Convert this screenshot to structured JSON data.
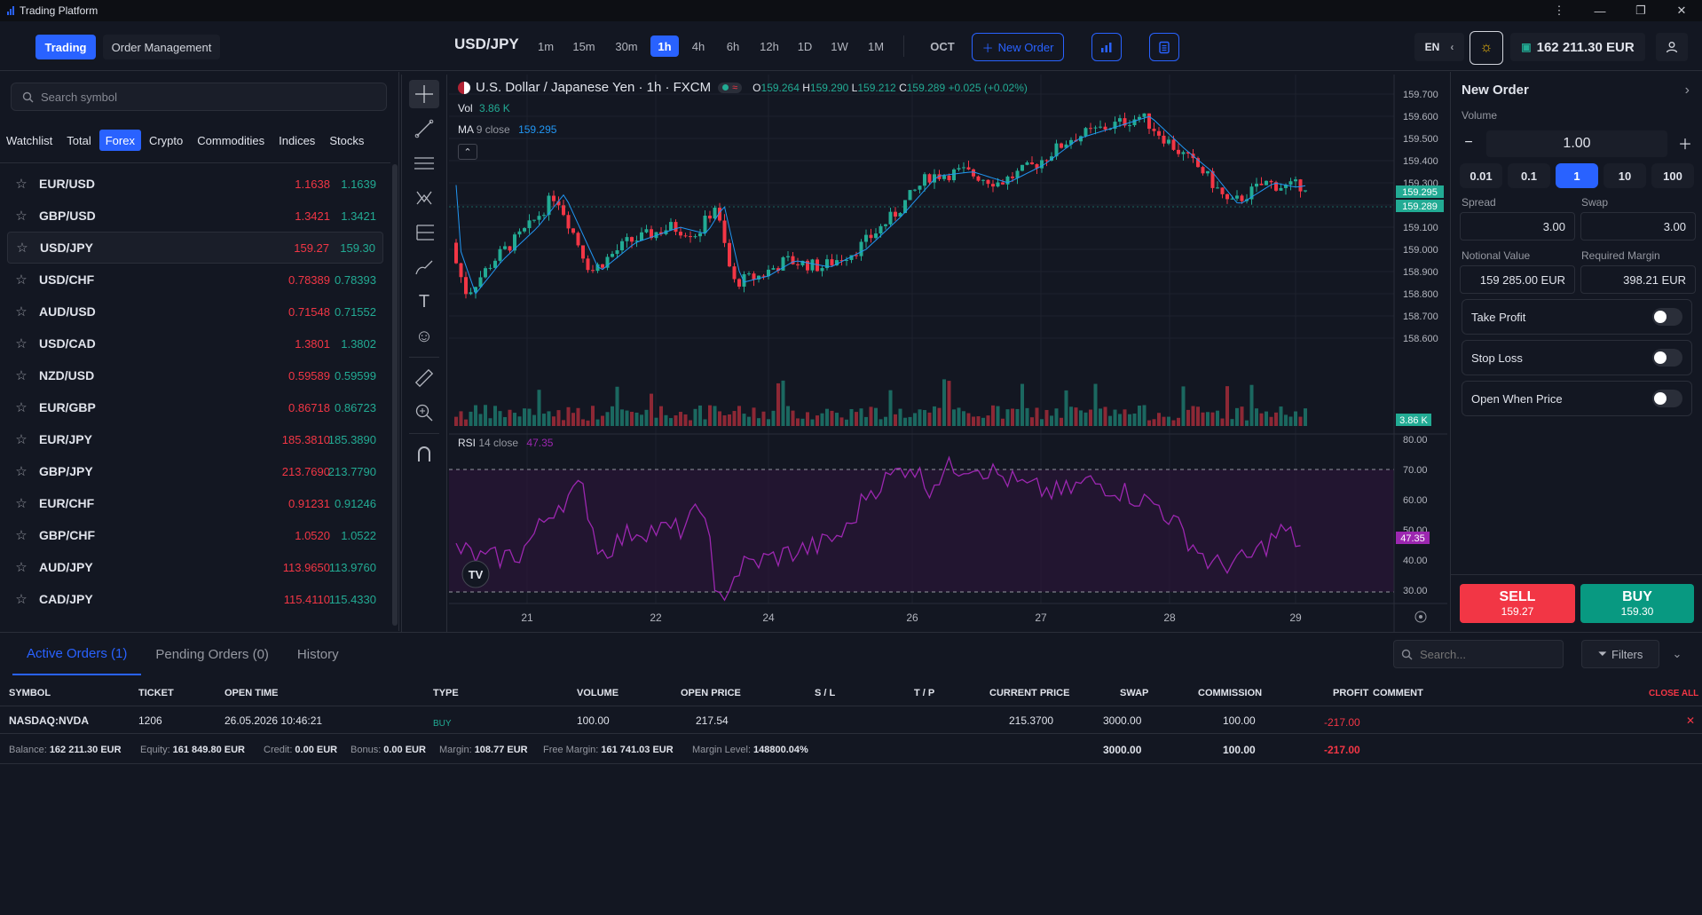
{
  "window": {
    "title": "Trading Platform"
  },
  "nav": {
    "trading": "Trading",
    "order_management": "Order Management"
  },
  "header": {
    "symbol": "USD/JPY",
    "timeframes": [
      "1m",
      "15m",
      "30m",
      "1h",
      "4h",
      "6h",
      "12h",
      "1D",
      "1W",
      "1M"
    ],
    "active_timeframe": "1h",
    "oct": "OCT",
    "new_order": "New Order",
    "lang": "EN",
    "balance": "162 211.30 EUR"
  },
  "search": {
    "placeholder": "Search symbol"
  },
  "categories": [
    "Watchlist",
    "Total",
    "Forex",
    "Crypto",
    "Commodities",
    "Indices",
    "Stocks"
  ],
  "active_category": "Forex",
  "symbols": [
    {
      "name": "EUR/USD",
      "bid": "1.1638",
      "ask": "1.1639"
    },
    {
      "name": "GBP/USD",
      "bid": "1.3421",
      "ask": "1.3421"
    },
    {
      "name": "USD/JPY",
      "bid": "159.27",
      "ask": "159.30"
    },
    {
      "name": "USD/CHF",
      "bid": "0.78389",
      "ask": "0.78393"
    },
    {
      "name": "AUD/USD",
      "bid": "0.71548",
      "ask": "0.71552"
    },
    {
      "name": "USD/CAD",
      "bid": "1.3801",
      "ask": "1.3802"
    },
    {
      "name": "NZD/USD",
      "bid": "0.59589",
      "ask": "0.59599"
    },
    {
      "name": "EUR/GBP",
      "bid": "0.86718",
      "ask": "0.86723"
    },
    {
      "name": "EUR/JPY",
      "bid": "185.3810",
      "ask": "185.3890"
    },
    {
      "name": "GBP/JPY",
      "bid": "213.7690",
      "ask": "213.7790"
    },
    {
      "name": "EUR/CHF",
      "bid": "0.91231",
      "ask": "0.91246"
    },
    {
      "name": "GBP/CHF",
      "bid": "1.0520",
      "ask": "1.0522"
    },
    {
      "name": "AUD/JPY",
      "bid": "113.9650",
      "ask": "113.9760"
    },
    {
      "name": "CAD/JPY",
      "bid": "115.4110",
      "ask": "115.4330"
    }
  ],
  "chart": {
    "legend_title": "U.S. Dollar / Japanese Yen · 1h · FXCM",
    "o_label": "O",
    "o": "159.264",
    "h_label": "H",
    "h": "159.290",
    "l_label": "L",
    "l": "159.212",
    "c_label": "C",
    "c": "159.289",
    "change": "+0.025 (+0.02%)",
    "vol_label": "Vol",
    "vol": "3.86 K",
    "ma_label": "MA",
    "ma_params": "9 close",
    "ma_value": "159.295",
    "rsi_label": "RSI",
    "rsi_params": "14 close",
    "rsi_value": "47.35",
    "price_ticks": [
      "159.700",
      "159.600",
      "159.500",
      "159.400",
      "159.300",
      "159.200",
      "159.100",
      "159.000",
      "158.900",
      "158.800",
      "158.700",
      "158.600"
    ],
    "price_badge_ma": "159.295",
    "price_badge_last": "159.289",
    "vol_badge": "3.86 K",
    "rsi_ticks": [
      "80.00",
      "70.00",
      "60.00",
      "50.00",
      "40.00",
      "30.00"
    ],
    "rsi_badge": "47.35",
    "x_ticks": [
      "21",
      "22",
      "24",
      "26",
      "27",
      "28",
      "29"
    ],
    "colors": {
      "up": "#22ab94",
      "down": "#f23645",
      "ma": "#2196f3",
      "rsi": "#9c27b0"
    }
  },
  "order_panel": {
    "title": "New Order",
    "volume_label": "Volume",
    "volume_value": "1.00",
    "quick": [
      "0.01",
      "0.1",
      "1",
      "10",
      "100"
    ],
    "quick_active": "1",
    "spread_label": "Spread",
    "spread": "3.00",
    "swap_label": "Swap",
    "swap": "3.00",
    "notional_label": "Notional Value",
    "notional": "159 285.00 EUR",
    "margin_label": "Required Margin",
    "margin": "398.21 EUR",
    "take_profit": "Take Profit",
    "stop_loss": "Stop Loss",
    "open_when_price": "Open When Price",
    "sell_label": "SELL",
    "sell_price": "159.27",
    "buy_label": "BUY",
    "buy_price": "159.30"
  },
  "orders": {
    "tabs": [
      "Active Orders (1)",
      "Pending Orders (0)",
      "History"
    ],
    "search_placeholder": "Search...",
    "filters": "Filters",
    "columns": {
      "symbol": "SYMBOL",
      "ticket": "TICKET",
      "open_time": "OPEN TIME",
      "type": "TYPE",
      "volume": "VOLUME",
      "open_price": "OPEN PRICE",
      "sl": "S / L",
      "tp": "T / P",
      "current_price": "CURRENT PRICE",
      "swap": "SWAP",
      "commission": "COMMISSION",
      "profit": "PROFIT",
      "comment": "COMMENT"
    },
    "close_all": "CLOSE ALL",
    "rows": [
      {
        "symbol": "NASDAQ:NVDA",
        "ticket": "1206",
        "open_time": "26.05.2026 10:46:21",
        "type": "BUY",
        "volume": "100.00",
        "open_price": "217.54",
        "current_price": "215.3700",
        "swap": "3000.00",
        "commission": "100.00",
        "profit": "-217.00"
      }
    ],
    "summary": {
      "balance_label": "Balance:",
      "balance": "162 211.30 EUR",
      "equity_label": "Equity:",
      "equity": "161 849.80 EUR",
      "credit_label": "Credit:",
      "credit": "0.00 EUR",
      "bonus_label": "Bonus:",
      "bonus": "0.00 EUR",
      "margin_label": "Margin:",
      "margin": "108.77 EUR",
      "free_margin_label": "Free Margin:",
      "free_margin": "161 741.03 EUR",
      "margin_level_label": "Margin Level:",
      "margin_level": "148800.04%",
      "swap": "3000.00",
      "commission": "100.00",
      "profit": "-217.00"
    }
  }
}
